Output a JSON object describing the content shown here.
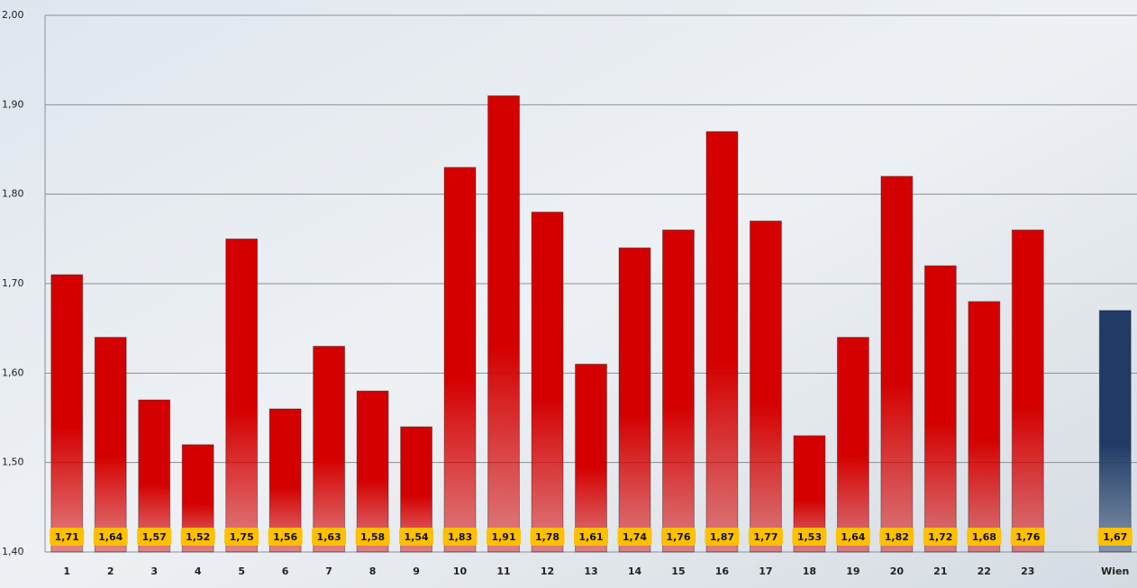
{
  "chart_data": {
    "type": "bar",
    "categories": [
      "1",
      "2",
      "3",
      "4",
      "5",
      "6",
      "7",
      "8",
      "9",
      "10",
      "11",
      "12",
      "13",
      "14",
      "15",
      "16",
      "17",
      "18",
      "19",
      "20",
      "21",
      "22",
      "23",
      null,
      "Wien"
    ],
    "values": [
      1.71,
      1.64,
      1.57,
      1.52,
      1.75,
      1.56,
      1.63,
      1.58,
      1.54,
      1.83,
      1.91,
      1.78,
      1.61,
      1.74,
      1.76,
      1.87,
      1.77,
      1.53,
      1.64,
      1.82,
      1.72,
      1.68,
      1.76,
      null,
      1.67
    ],
    "value_labels": [
      "1,71",
      "1,64",
      "1,57",
      "1,52",
      "1,75",
      "1,56",
      "1,63",
      "1,58",
      "1,54",
      "1,83",
      "1,91",
      "1,78",
      "1,61",
      "1,74",
      "1,76",
      "1,87",
      "1,77",
      "1,53",
      "1,64",
      "1,82",
      "1,72",
      "1,68",
      "1,76",
      null,
      "1,67"
    ],
    "colors": [
      "#d40000",
      "#d40000",
      "#d40000",
      "#d40000",
      "#d40000",
      "#d40000",
      "#d40000",
      "#d40000",
      "#d40000",
      "#d40000",
      "#d40000",
      "#d40000",
      "#d40000",
      "#d40000",
      "#d40000",
      "#d40000",
      "#d40000",
      "#d40000",
      "#d40000",
      "#d40000",
      "#d40000",
      "#d40000",
      "#d40000",
      null,
      "#1f3b66"
    ],
    "ylim": [
      1.4,
      2.0
    ],
    "yticks": [
      {
        "value": 1.4,
        "label": "1,40"
      },
      {
        "value": 1.5,
        "label": "1,50"
      },
      {
        "value": 1.6,
        "label": "1,60"
      },
      {
        "value": 1.7,
        "label": "1,70"
      },
      {
        "value": 1.8,
        "label": "1,80"
      },
      {
        "value": 1.9,
        "label": "1,90"
      },
      {
        "value": 2.0,
        "label": "2,00"
      }
    ],
    "grid": true
  }
}
